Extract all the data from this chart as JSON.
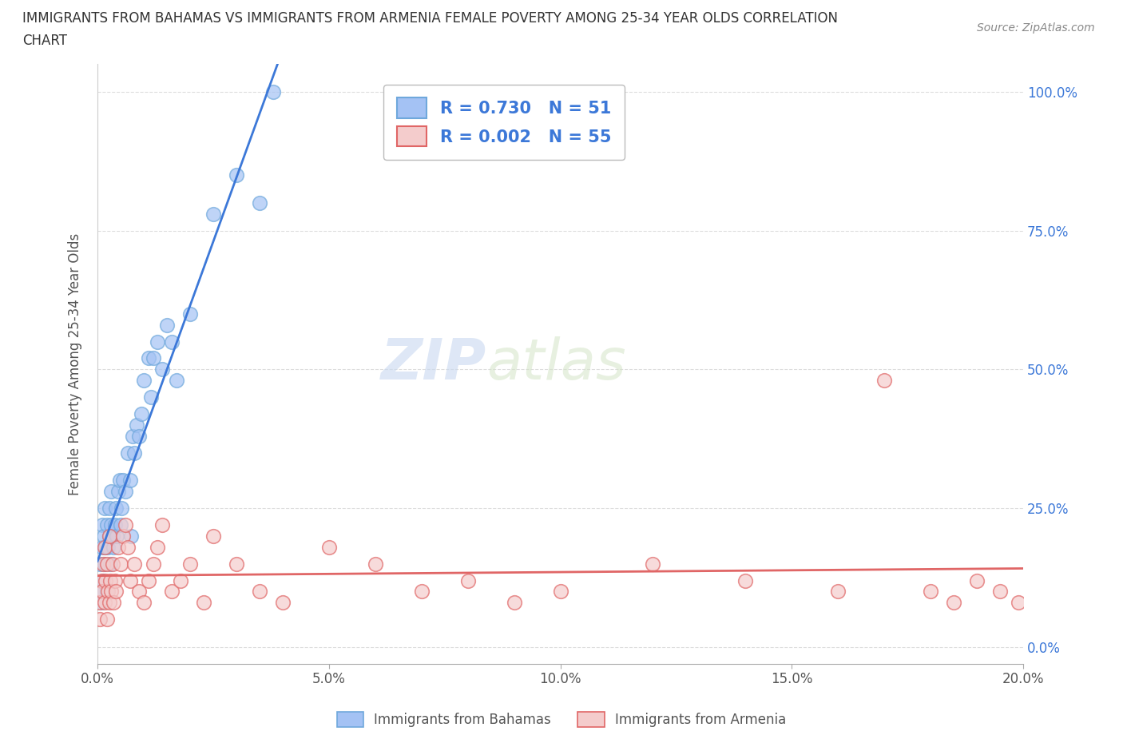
{
  "title_line1": "IMMIGRANTS FROM BAHAMAS VS IMMIGRANTS FROM ARMENIA FEMALE POVERTY AMONG 25-34 YEAR OLDS CORRELATION",
  "title_line2": "CHART",
  "source": "Source: ZipAtlas.com",
  "ylabel": "Female Poverty Among 25-34 Year Olds",
  "watermark_zip": "ZIP",
  "watermark_atlas": "atlas",
  "xlim": [
    0.0,
    0.2
  ],
  "ylim": [
    -0.03,
    1.05
  ],
  "yticks": [
    0.0,
    0.25,
    0.5,
    0.75,
    1.0
  ],
  "ytick_labels": [
    "0.0%",
    "25.0%",
    "50.0%",
    "75.0%",
    "100.0%"
  ],
  "xticks": [
    0.0,
    0.05,
    0.1,
    0.15,
    0.2
  ],
  "xtick_labels": [
    "0.0%",
    "5.0%",
    "10.0%",
    "15.0%",
    "20.0%"
  ],
  "legend_r1": "R = 0.730",
  "legend_n1": "N = 51",
  "legend_r2": "R = 0.002",
  "legend_n2": "N = 55",
  "color_bahamas": "#a4c2f4",
  "color_armenia": "#f4cccc",
  "trendline_color_bahamas": "#3c78d8",
  "trendline_color_armenia": "#e06666",
  "bahamas_x": [
    0.0003,
    0.0005,
    0.0008,
    0.001,
    0.001,
    0.0012,
    0.0013,
    0.0015,
    0.0015,
    0.0018,
    0.002,
    0.002,
    0.0022,
    0.0025,
    0.0025,
    0.0028,
    0.003,
    0.003,
    0.0032,
    0.0035,
    0.0038,
    0.004,
    0.0042,
    0.0045,
    0.0048,
    0.005,
    0.0052,
    0.0055,
    0.006,
    0.0065,
    0.007,
    0.0072,
    0.0075,
    0.008,
    0.0085,
    0.009,
    0.0095,
    0.01,
    0.011,
    0.0115,
    0.012,
    0.013,
    0.014,
    0.015,
    0.016,
    0.017,
    0.02,
    0.025,
    0.03,
    0.035,
    0.038
  ],
  "bahamas_y": [
    0.1,
    0.15,
    0.08,
    0.18,
    0.22,
    0.12,
    0.2,
    0.15,
    0.25,
    0.18,
    0.1,
    0.22,
    0.18,
    0.25,
    0.2,
    0.15,
    0.22,
    0.28,
    0.2,
    0.18,
    0.22,
    0.25,
    0.2,
    0.28,
    0.3,
    0.22,
    0.25,
    0.3,
    0.28,
    0.35,
    0.3,
    0.2,
    0.38,
    0.35,
    0.4,
    0.38,
    0.42,
    0.48,
    0.52,
    0.45,
    0.52,
    0.55,
    0.5,
    0.58,
    0.55,
    0.48,
    0.6,
    0.78,
    0.85,
    0.8,
    1.0
  ],
  "armenia_x": [
    0.0003,
    0.0005,
    0.0008,
    0.001,
    0.0012,
    0.0015,
    0.0015,
    0.0018,
    0.002,
    0.002,
    0.0022,
    0.0025,
    0.0025,
    0.0028,
    0.003,
    0.0032,
    0.0035,
    0.0038,
    0.004,
    0.0045,
    0.005,
    0.0055,
    0.006,
    0.0065,
    0.007,
    0.008,
    0.009,
    0.01,
    0.011,
    0.012,
    0.013,
    0.014,
    0.016,
    0.018,
    0.02,
    0.023,
    0.025,
    0.03,
    0.035,
    0.04,
    0.05,
    0.06,
    0.07,
    0.08,
    0.09,
    0.1,
    0.12,
    0.14,
    0.16,
    0.17,
    0.18,
    0.185,
    0.19,
    0.195,
    0.199
  ],
  "armenia_y": [
    0.08,
    0.05,
    0.12,
    0.1,
    0.15,
    0.08,
    0.18,
    0.12,
    0.05,
    0.15,
    0.1,
    0.08,
    0.2,
    0.12,
    0.1,
    0.15,
    0.08,
    0.12,
    0.1,
    0.18,
    0.15,
    0.2,
    0.22,
    0.18,
    0.12,
    0.15,
    0.1,
    0.08,
    0.12,
    0.15,
    0.18,
    0.22,
    0.1,
    0.12,
    0.15,
    0.08,
    0.2,
    0.15,
    0.1,
    0.08,
    0.18,
    0.15,
    0.1,
    0.12,
    0.08,
    0.1,
    0.15,
    0.12,
    0.1,
    0.48,
    0.1,
    0.08,
    0.12,
    0.1,
    0.08
  ]
}
